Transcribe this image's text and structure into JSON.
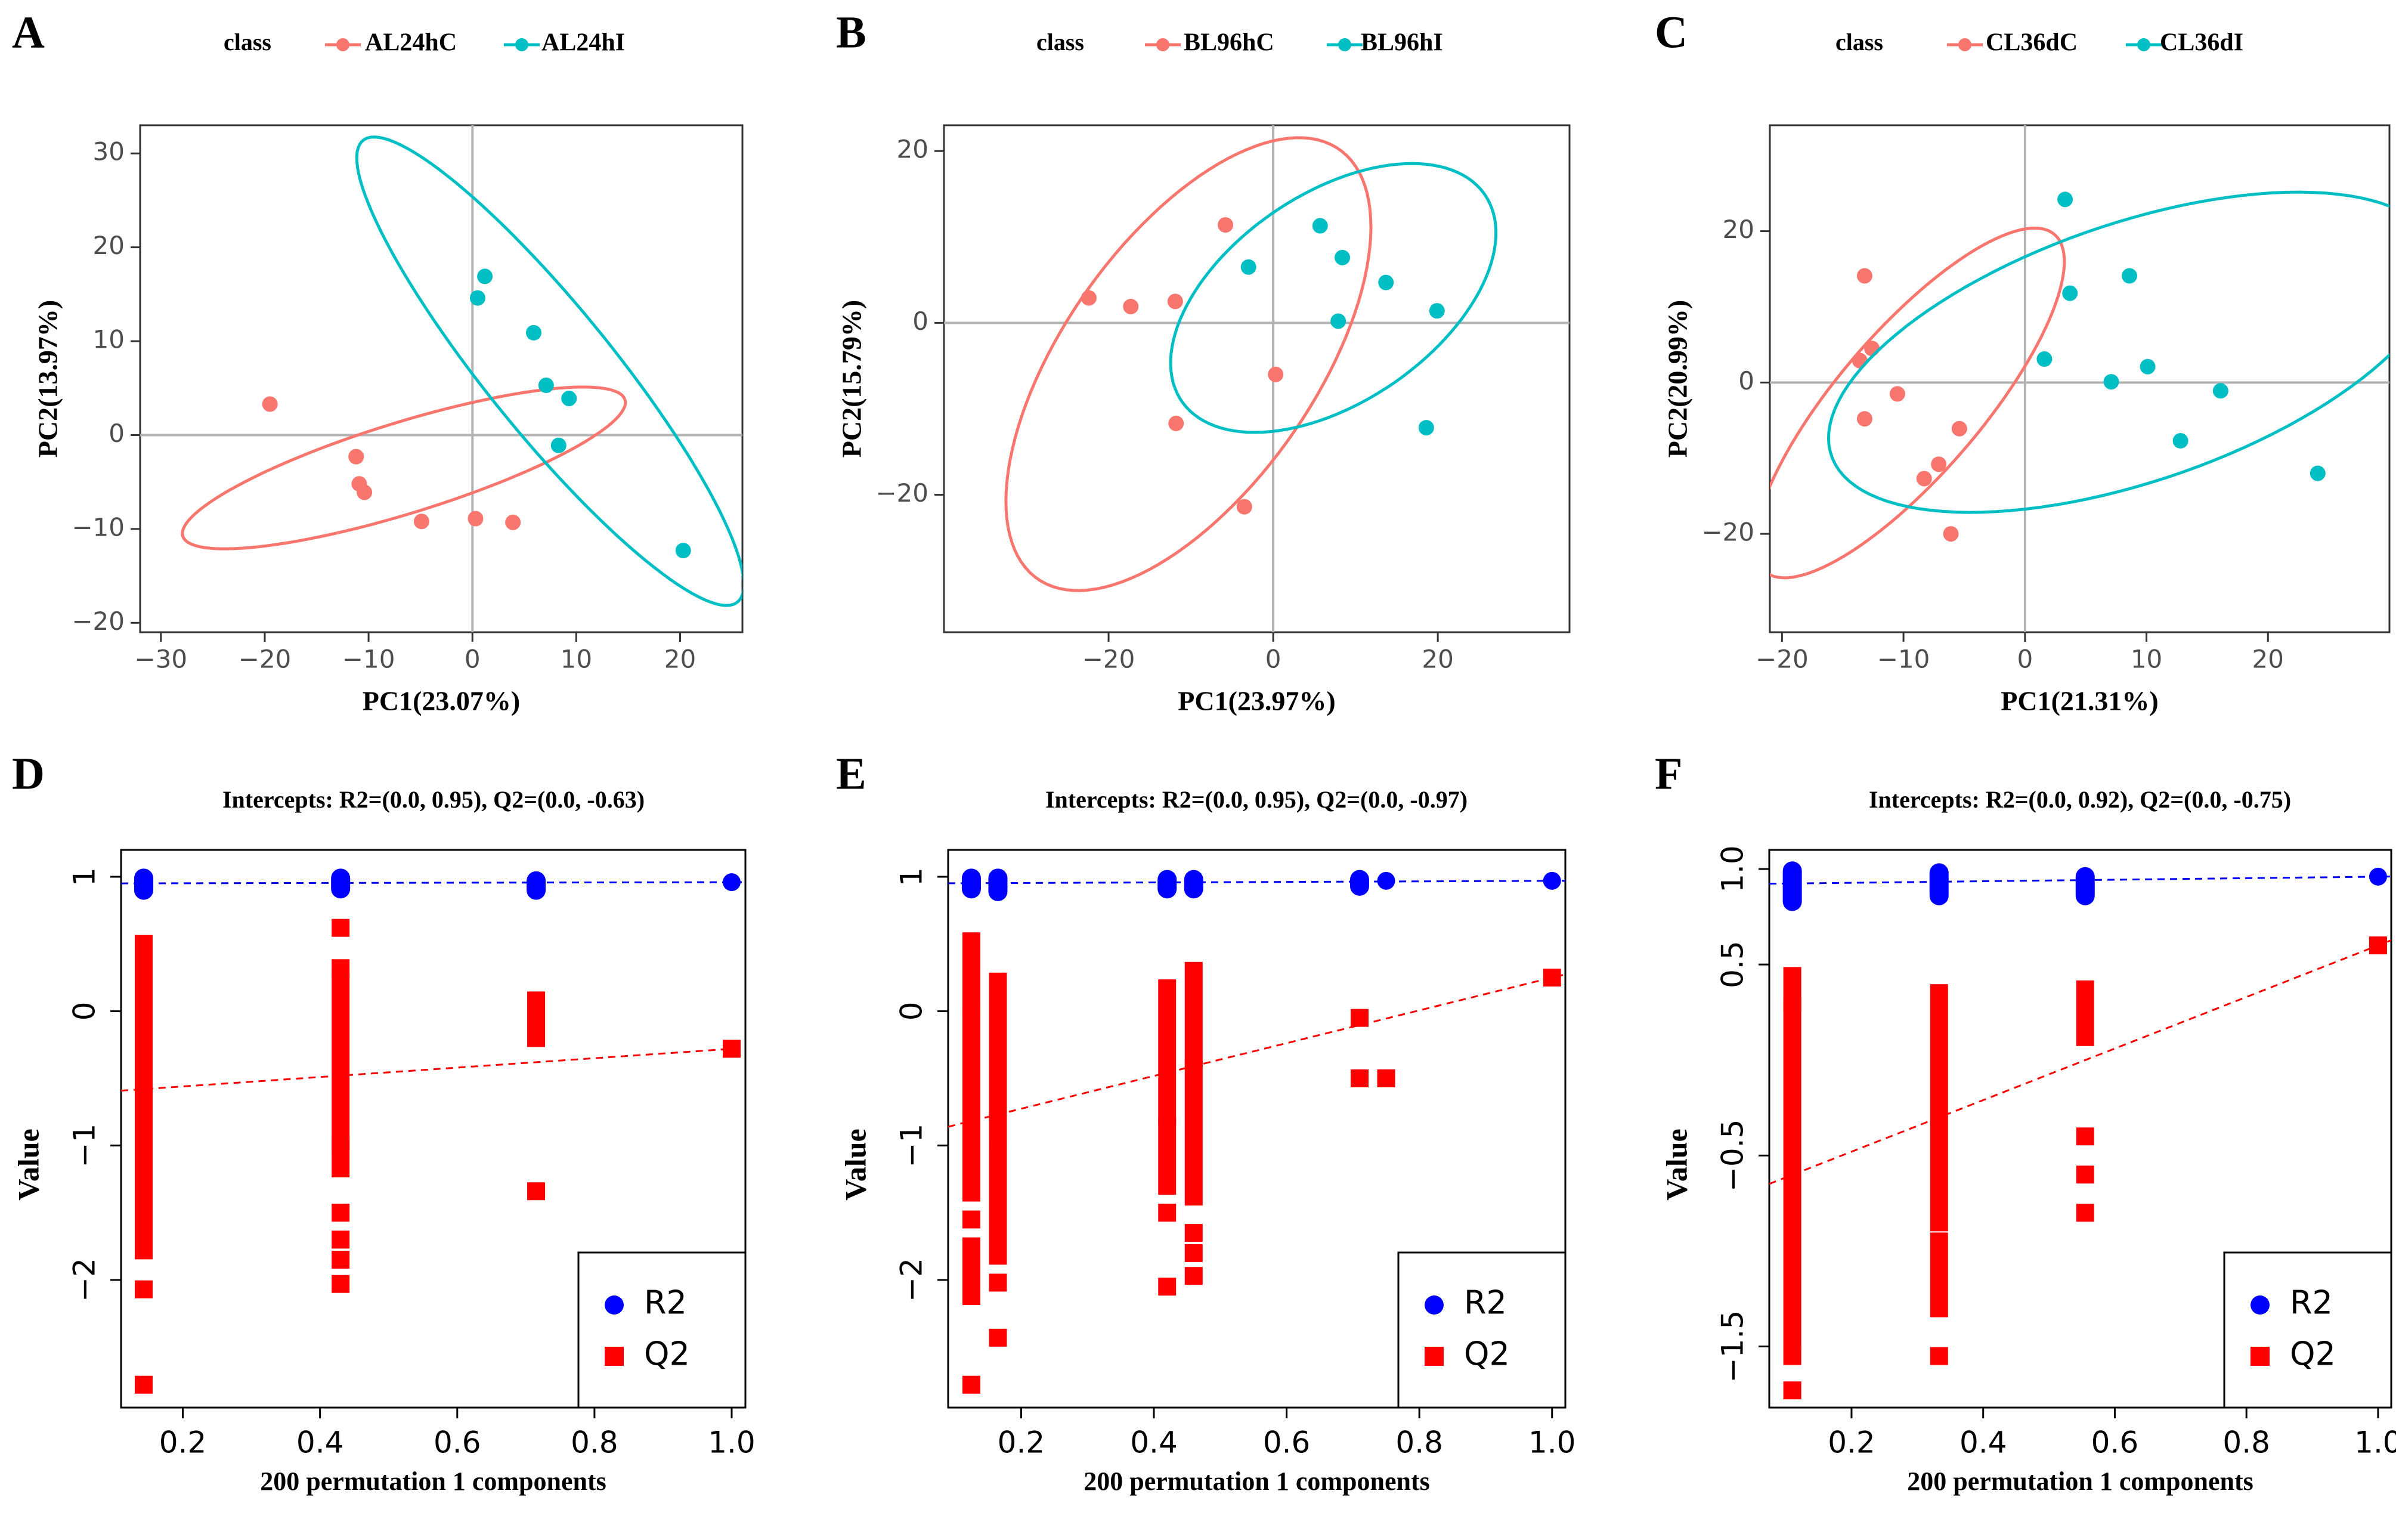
{
  "chart_data": [
    {
      "panel": "A",
      "type": "scatter",
      "xlabel": "PC1(23.07%)",
      "ylabel": "PC2(13.97%)",
      "xlim": [
        -32,
        26
      ],
      "ylim": [
        -21,
        33
      ],
      "xticks": [
        -30,
        -20,
        -10,
        0,
        10,
        20
      ],
      "yticks": [
        -20,
        -10,
        0,
        10,
        20,
        30
      ],
      "legend_title": "class",
      "legend_position": "top",
      "reference_lines": [
        0,
        0
      ],
      "series": [
        {
          "name": "AL24hC",
          "color": "#F8766D",
          "points": [
            [
              -19.5,
              3.3
            ],
            [
              -11.2,
              -2.3
            ],
            [
              -10.9,
              -5.2
            ],
            [
              -10.4,
              -6.1
            ],
            [
              -4.9,
              -9.2
            ],
            [
              0.3,
              -8.9
            ],
            [
              3.9,
              -9.3
            ]
          ],
          "ellipse": {
            "cx": -6.6,
            "cy": -3.5,
            "rx": 22.5,
            "ry": 4.8,
            "angle": 19
          }
        },
        {
          "name": "AL24hI",
          "color": "#00BFC4",
          "points": [
            [
              0.5,
              14.6
            ],
            [
              1.2,
              16.9
            ],
            [
              5.9,
              10.9
            ],
            [
              7.1,
              5.3
            ],
            [
              9.3,
              3.9
            ],
            [
              8.3,
              -1.1
            ],
            [
              20.3,
              -12.3
            ]
          ],
          "ellipse": {
            "cx": 7.5,
            "cy": 6.8,
            "rx": 30.5,
            "ry": 6.3,
            "angle": -54
          }
        }
      ]
    },
    {
      "panel": "B",
      "type": "scatter",
      "xlabel": "PC1(23.97%)",
      "ylabel": "PC2(15.79%)",
      "xlim": [
        -40,
        36
      ],
      "ylim": [
        -36,
        23
      ],
      "xticks": [
        -20,
        0,
        20
      ],
      "yticks": [
        -20,
        0,
        20
      ],
      "legend_title": "class",
      "legend_position": "top",
      "reference_lines": [
        0,
        0
      ],
      "series": [
        {
          "name": "BL96hC",
          "color": "#F8766D",
          "points": [
            [
              -22.4,
              2.9
            ],
            [
              -17.3,
              1.9
            ],
            [
              -11.9,
              2.5
            ],
            [
              -11.8,
              -11.7
            ],
            [
              -5.8,
              11.4
            ],
            [
              0.3,
              -6.0
            ],
            [
              -3.5,
              -21.4
            ]
          ],
          "ellipse": {
            "cx": -10.3,
            "cy": -4.8,
            "rx": 31.0,
            "ry": 15.0,
            "angle": 53
          }
        },
        {
          "name": "BL96hI",
          "color": "#00BFC4",
          "points": [
            [
              -3.0,
              6.5
            ],
            [
              5.7,
              11.3
            ],
            [
              8.4,
              7.6
            ],
            [
              7.9,
              0.2
            ],
            [
              13.7,
              4.7
            ],
            [
              19.9,
              1.4
            ],
            [
              18.6,
              -12.2
            ]
          ],
          "ellipse": {
            "cx": 7.3,
            "cy": 2.9,
            "rx": 22.0,
            "ry": 12.3,
            "angle": 32
          }
        }
      ]
    },
    {
      "panel": "C",
      "type": "scatter",
      "xlabel": "PC1(21.31%)",
      "ylabel": "PC2(20.99%)",
      "xlim": [
        -21,
        30
      ],
      "ylim": [
        -33,
        34
      ],
      "xticks": [
        -20,
        -10,
        0,
        10,
        20
      ],
      "yticks": [
        -20,
        0,
        20
      ],
      "legend_title": "class",
      "legend_position": "top",
      "reference_lines": [
        0,
        0
      ],
      "series": [
        {
          "name": "CL36dC",
          "color": "#F8766D",
          "points": [
            [
              -13.2,
              14.1
            ],
            [
              -13.6,
              2.9
            ],
            [
              -12.6,
              4.5
            ],
            [
              -13.2,
              -4.8
            ],
            [
              -10.5,
              -1.5
            ],
            [
              -5.4,
              -6.1
            ],
            [
              -7.1,
              -10.8
            ],
            [
              -8.3,
              -12.7
            ],
            [
              -6.1,
              -20.0
            ]
          ],
          "ellipse": {
            "cx": -9.5,
            "cy": -2.7,
            "rx": 25.5,
            "ry": 6.8,
            "angle": 64
          }
        },
        {
          "name": "CL36dI",
          "color": "#00BFC4",
          "points": [
            [
              3.3,
              24.2
            ],
            [
              3.7,
              11.8
            ],
            [
              8.6,
              14.1
            ],
            [
              1.6,
              3.1
            ],
            [
              7.1,
              0.1
            ],
            [
              10.1,
              2.1
            ],
            [
              16.1,
              -1.1
            ],
            [
              12.8,
              -7.7
            ],
            [
              24.1,
              -12.0
            ]
          ],
          "ellipse": {
            "cx": 9.0,
            "cy": 4.0,
            "rx": 29.0,
            "ry": 15.5,
            "angle": 36
          }
        }
      ]
    },
    {
      "panel": "D",
      "type": "scatter",
      "title": "Intercepts: R2=(0.0, 0.95), Q2=(0.0, -0.63)",
      "xlabel": "200 permutation 1 components",
      "ylabel": "Value",
      "xlim": [
        0.11,
        1.02
      ],
      "ylim": [
        -2.95,
        1.2
      ],
      "xticks": [
        0.2,
        0.4,
        0.6,
        0.8,
        1.0
      ],
      "xtick_labels": [
        "0.2",
        "0.4",
        "0.6",
        "0.8",
        "1.0"
      ],
      "yticks": [
        -2,
        -1,
        0,
        1
      ],
      "ytick_labels": [
        "−2",
        "−1",
        "0",
        "1"
      ],
      "legend_position": "bottom-right",
      "columns": [
        {
          "x": 0.143,
          "r2": [
            0.9,
            0.99
          ],
          "q2_runs": [
            [
              -1.78,
              0.5
            ]
          ],
          "q2_points": [
            -2.07,
            -2.78
          ]
        },
        {
          "x": 0.43,
          "r2": [
            0.91,
            0.99
          ],
          "q2_runs": [
            [
              -0.97,
              0.22
            ],
            [
              -1.17,
              -1.0
            ]
          ],
          "q2_points": [
            0.62,
            0.32,
            -1.5,
            -1.7,
            -1.85,
            -2.03
          ]
        },
        {
          "x": 0.715,
          "r2": [
            0.9,
            0.97
          ],
          "q2_runs": [
            [
              -0.2,
              0.08
            ]
          ],
          "q2_points": [
            -1.34
          ]
        },
        {
          "x": 1.0,
          "r2": [
            0.96
          ],
          "q2_runs": [],
          "q2_points": [
            -0.28
          ]
        }
      ],
      "series": [
        {
          "name": "R2",
          "color": "#0000FF",
          "marker": "circle",
          "intercept": 0.95,
          "endpoint": 0.96
        },
        {
          "name": "Q2",
          "color": "#FF0000",
          "marker": "square",
          "intercept": -0.63,
          "endpoint": -0.28
        }
      ]
    },
    {
      "panel": "E",
      "type": "scatter",
      "title": "Intercepts: R2=(0.0, 0.95), Q2=(0.0, -0.97)",
      "xlabel": "200 permutation 1 components",
      "ylabel": "Value",
      "xlim": [
        0.09,
        1.02
      ],
      "ylim": [
        -2.95,
        1.2
      ],
      "xticks": [
        0.2,
        0.4,
        0.6,
        0.8,
        1.0
      ],
      "xtick_labels": [
        "0.2",
        "0.4",
        "0.6",
        "0.8",
        "1.0"
      ],
      "yticks": [
        -2,
        -1,
        0,
        1
      ],
      "ytick_labels": [
        "−2",
        "−1",
        "0",
        "1"
      ],
      "legend_position": "bottom-right",
      "columns": [
        {
          "x": 0.125,
          "r2": [
            0.91,
            0.99
          ],
          "q2_runs": [
            [
              -1.35,
              -0.02
            ],
            [
              -2.12,
              -1.75
            ],
            [
              0.02,
              0.52
            ]
          ],
          "q2_points": [
            -1.55,
            -2.78
          ]
        },
        {
          "x": 0.165,
          "r2": [
            0.89,
            0.99
          ],
          "q2_runs": [
            [
              -1.82,
              -1.05
            ],
            [
              -0.95,
              0.22
            ]
          ],
          "q2_points": [
            -2.02,
            -2.43
          ]
        },
        {
          "x": 0.42,
          "r2": [
            0.91,
            0.98
          ],
          "q2_runs": [
            [
              -1.3,
              -0.86
            ],
            [
              -0.78,
              0.17
            ]
          ],
          "q2_points": [
            -1.5,
            -2.05
          ]
        },
        {
          "x": 0.46,
          "r2": [
            0.91,
            0.98
          ],
          "q2_runs": [
            [
              -1.38,
              -0.43
            ],
            [
              -0.35,
              0.3
            ]
          ],
          "q2_points": [
            -1.65,
            -1.8,
            -1.97
          ]
        },
        {
          "x": 0.71,
          "r2": [
            0.93,
            0.98
          ],
          "q2_runs": [],
          "q2_points": [
            -0.05,
            -0.5
          ]
        },
        {
          "x": 0.75,
          "r2": [
            0.97
          ],
          "q2_runs": [],
          "q2_points": [
            -0.5
          ]
        },
        {
          "x": 1.0,
          "r2": [
            0.97
          ],
          "q2_runs": [],
          "q2_points": [
            0.25
          ]
        }
      ],
      "series": [
        {
          "name": "R2",
          "color": "#0000FF",
          "marker": "circle",
          "intercept": 0.95,
          "endpoint": 0.97
        },
        {
          "name": "Q2",
          "color": "#FF0000",
          "marker": "square",
          "intercept": -0.97,
          "endpoint": 0.25
        }
      ]
    },
    {
      "panel": "F",
      "type": "scatter",
      "title": "Intercepts: R2=(0.0, 0.92), Q2=(0.0, -0.75)",
      "xlabel": "200 permutation 1 components",
      "ylabel": "Value",
      "xlim": [
        0.075,
        1.02
      ],
      "ylim": [
        -1.82,
        1.1
      ],
      "xticks": [
        0.2,
        0.4,
        0.6,
        0.8,
        1.0
      ],
      "xtick_labels": [
        "0.2",
        "0.4",
        "0.6",
        "0.8",
        "1.0"
      ],
      "yticks": [
        -1.5,
        -0.5,
        0.5,
        1.0
      ],
      "ytick_labels": [
        "−1.5",
        "−0.5",
        "0.5",
        "1.0"
      ],
      "legend_position": "bottom-right",
      "columns": [
        {
          "x": 0.11,
          "r2": [
            0.83,
            0.99
          ],
          "q2_runs": [
            [
              -1.46,
              0.28
            ],
            [
              0.3,
              0.44
            ]
          ],
          "q2_points": [
            -1.55,
            -1.73
          ]
        },
        {
          "x": 0.333,
          "r2": [
            0.86,
            0.98
          ],
          "q2_runs": [
            [
              -0.85,
              0.35
            ],
            [
              -1.3,
              -0.95
            ]
          ],
          "q2_points": [
            -1.55
          ]
        },
        {
          "x": 0.555,
          "r2": [
            0.86,
            0.96
          ],
          "q2_runs": [
            [
              0.12,
              0.37
            ]
          ],
          "q2_points": [
            -0.4,
            -0.6,
            -0.8
          ]
        },
        {
          "x": 1.0,
          "r2": [
            0.96
          ],
          "q2_runs": [],
          "q2_points": [
            0.6
          ]
        }
      ],
      "series": [
        {
          "name": "R2",
          "color": "#0000FF",
          "marker": "circle",
          "intercept": 0.92,
          "endpoint": 0.96
        },
        {
          "name": "Q2",
          "color": "#FF0000",
          "marker": "square",
          "intercept": -0.75,
          "endpoint": 0.6
        }
      ]
    }
  ]
}
